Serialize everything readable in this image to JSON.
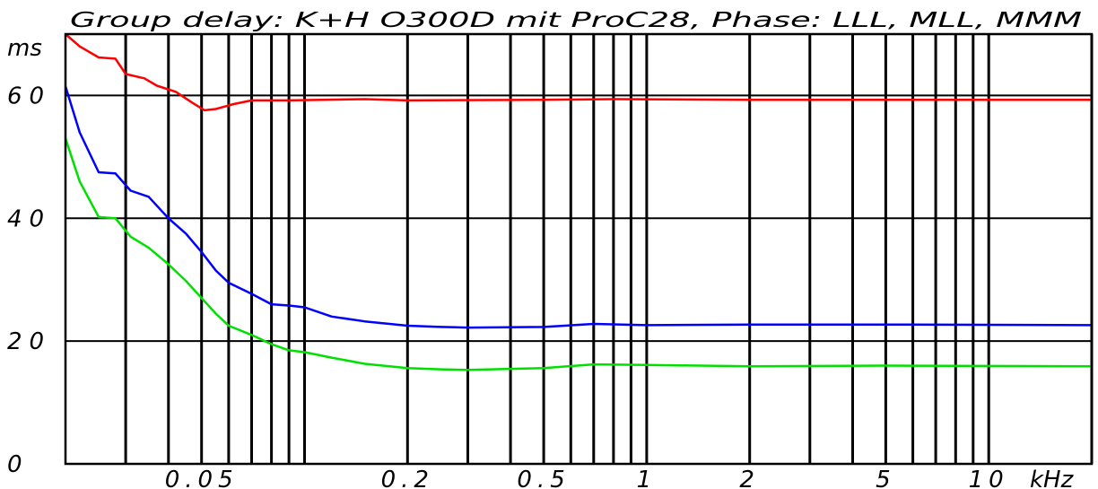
{
  "chart_data": {
    "type": "line",
    "title": "Group delay: K+H O300D mit ProC28, Phase: LLL, MLL, MMM",
    "ylabel": "ms",
    "xunit": "kHz",
    "xscale": "log",
    "xlim": [
      0.02,
      20
    ],
    "ylim": [
      0,
      70
    ],
    "grid": true,
    "yticks": [
      {
        "value": 0,
        "label": "0"
      },
      {
        "value": 20,
        "label": "20"
      },
      {
        "value": 40,
        "label": "40"
      },
      {
        "value": 60,
        "label": "60"
      }
    ],
    "xticks": [
      {
        "value": 0.05,
        "label": "0.05"
      },
      {
        "value": 0.2,
        "label": "0.2"
      },
      {
        "value": 0.5,
        "label": "0.5"
      },
      {
        "value": 1,
        "label": "1"
      },
      {
        "value": 2,
        "label": "2"
      },
      {
        "value": 5,
        "label": "5"
      },
      {
        "value": 10,
        "label": "10"
      }
    ],
    "vgrid": [
      0.03,
      0.04,
      0.05,
      0.06,
      0.07,
      0.08,
      0.09,
      0.1,
      0.2,
      0.3,
      0.4,
      0.5,
      0.6,
      0.7,
      0.8,
      0.9,
      1,
      2,
      3,
      4,
      5,
      6,
      7,
      8,
      9,
      10,
      20
    ],
    "series": [
      {
        "color": "#ff0000",
        "points": [
          [
            0.02,
            70
          ],
          [
            0.022,
            68
          ],
          [
            0.025,
            66.2
          ],
          [
            0.028,
            66
          ],
          [
            0.03,
            63.5
          ],
          [
            0.034,
            62.8
          ],
          [
            0.037,
            61.6
          ],
          [
            0.042,
            60.6
          ],
          [
            0.047,
            58.8
          ],
          [
            0.051,
            57.6
          ],
          [
            0.055,
            57.8
          ],
          [
            0.062,
            58.6
          ],
          [
            0.07,
            59.2
          ],
          [
            0.09,
            59.2
          ],
          [
            0.15,
            59.4
          ],
          [
            0.2,
            59.2
          ],
          [
            0.5,
            59.3
          ],
          [
            0.8,
            59.4
          ],
          [
            2,
            59.3
          ],
          [
            5,
            59.3
          ],
          [
            20,
            59.3
          ]
        ]
      },
      {
        "color": "#0000ff",
        "points": [
          [
            0.02,
            61.5
          ],
          [
            0.022,
            54
          ],
          [
            0.025,
            47.5
          ],
          [
            0.028,
            47.3
          ],
          [
            0.031,
            44.5
          ],
          [
            0.035,
            43.5
          ],
          [
            0.04,
            40
          ],
          [
            0.045,
            37.5
          ],
          [
            0.05,
            34.5
          ],
          [
            0.055,
            31.5
          ],
          [
            0.06,
            29.5
          ],
          [
            0.07,
            27.7
          ],
          [
            0.08,
            26
          ],
          [
            0.09,
            25.8
          ],
          [
            0.1,
            25.5
          ],
          [
            0.12,
            24
          ],
          [
            0.15,
            23.2
          ],
          [
            0.2,
            22.5
          ],
          [
            0.25,
            22.3
          ],
          [
            0.3,
            22.2
          ],
          [
            0.5,
            22.3
          ],
          [
            0.7,
            22.8
          ],
          [
            1,
            22.6
          ],
          [
            2,
            22.7
          ],
          [
            5,
            22.7
          ],
          [
            20,
            22.6
          ]
        ]
      },
      {
        "color": "#00e000",
        "points": [
          [
            0.02,
            53
          ],
          [
            0.022,
            46
          ],
          [
            0.025,
            40.2
          ],
          [
            0.028,
            40
          ],
          [
            0.031,
            37
          ],
          [
            0.035,
            35.2
          ],
          [
            0.04,
            32.5
          ],
          [
            0.045,
            29.8
          ],
          [
            0.05,
            27
          ],
          [
            0.055,
            24.5
          ],
          [
            0.06,
            22.5
          ],
          [
            0.07,
            21
          ],
          [
            0.08,
            19.5
          ],
          [
            0.09,
            18.5
          ],
          [
            0.1,
            18.2
          ],
          [
            0.12,
            17.3
          ],
          [
            0.15,
            16.3
          ],
          [
            0.2,
            15.6
          ],
          [
            0.25,
            15.4
          ],
          [
            0.3,
            15.3
          ],
          [
            0.5,
            15.6
          ],
          [
            0.7,
            16.2
          ],
          [
            1,
            16.1
          ],
          [
            2,
            15.9
          ],
          [
            5,
            16
          ],
          [
            20,
            15.9
          ]
        ]
      }
    ]
  }
}
